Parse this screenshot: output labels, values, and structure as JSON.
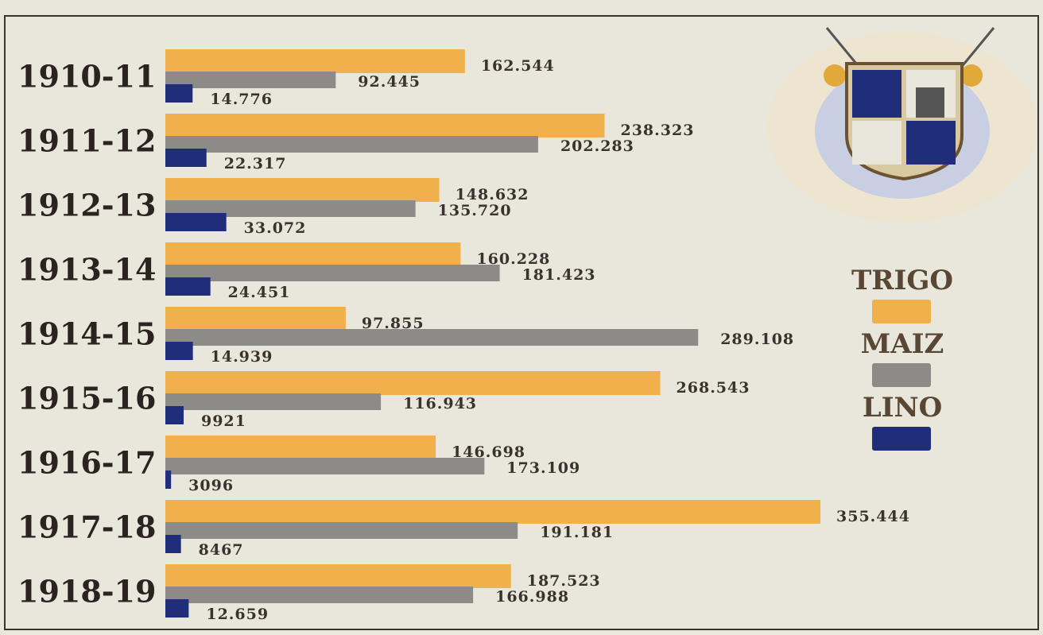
{
  "chart_data": {
    "type": "bar",
    "orientation": "horizontal",
    "categories": [
      "1910-11",
      "1911-12",
      "1912-13",
      "1913-14",
      "1914-15",
      "1915-16",
      "1916-17",
      "1917-18",
      "1918-19"
    ],
    "series": [
      {
        "name": "TRIGO",
        "color": "#f0b14c",
        "values": [
          162544,
          238323,
          148632,
          160228,
          97855,
          268543,
          146698,
          355444,
          187523
        ],
        "value_labels": [
          "162.544",
          "238.323",
          "148.632",
          "160.228",
          "97.855",
          "268.543",
          "146.698",
          "355.444",
          "187.523"
        ]
      },
      {
        "name": "MAIZ",
        "color": "#8c8b88",
        "values": [
          92445,
          202283,
          135720,
          181423,
          289108,
          116943,
          173109,
          191181,
          166988
        ],
        "value_labels": [
          "92.445",
          "202.283",
          "135.720",
          "181.423",
          "289.108",
          "116.943",
          "173.109",
          "191.181",
          "166.988"
        ]
      },
      {
        "name": "LINO",
        "color": "#1f2d7a",
        "values": [
          14776,
          22317,
          33072,
          24451,
          14939,
          9921,
          3096,
          8467,
          12659
        ],
        "value_labels": [
          "14.776",
          "22.317",
          "33.072",
          "24.451",
          "14.939",
          "9921",
          "3096",
          "8467",
          "12.659"
        ]
      }
    ],
    "legend": "right"
  }
}
